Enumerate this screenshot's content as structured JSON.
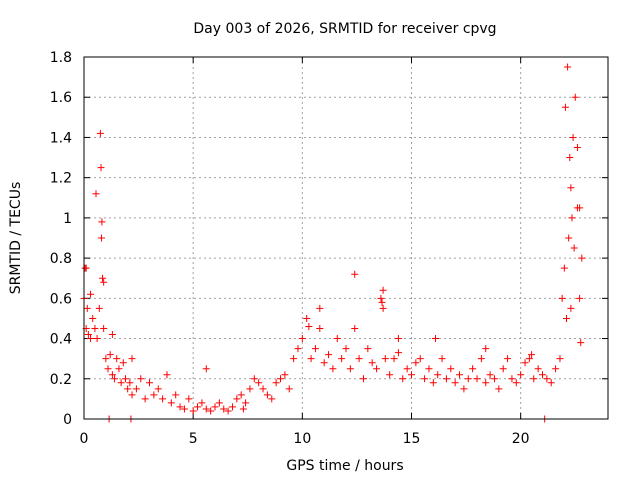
{
  "chart_data": {
    "type": "scatter",
    "title": "Day 003 of 2026, SRMTID for receiver cpvg",
    "xlabel": "GPS time / hours",
    "ylabel": "SRMTID / TECUs",
    "xlim": [
      0,
      24
    ],
    "ylim": [
      0,
      1.8
    ],
    "xticks": [
      0,
      5,
      10,
      15,
      20
    ],
    "yticks": [
      0,
      0.2,
      0.4,
      0.6,
      0.8,
      1,
      1.2,
      1.4,
      1.6,
      1.8
    ],
    "grid": true,
    "marker": "plus",
    "color": "#ff0000",
    "series": [
      {
        "name": "SRMTID",
        "x": [
          0.0,
          0.05,
          0.1,
          0.15,
          0.2,
          0.3,
          0.4,
          0.5,
          0.6,
          0.7,
          0.75,
          0.8,
          0.85,
          0.9,
          1.0,
          1.1,
          1.2,
          1.3,
          1.4,
          1.5,
          1.6,
          1.7,
          1.8,
          1.9,
          2.0,
          2.1,
          2.2,
          2.4,
          2.6,
          2.8,
          3.0,
          3.2,
          3.4,
          3.6,
          3.8,
          4.0,
          4.2,
          4.4,
          4.6,
          4.8,
          5.0,
          5.2,
          5.4,
          5.6,
          5.8,
          6.0,
          6.2,
          6.4,
          6.6,
          6.8,
          7.0,
          7.2,
          7.4,
          7.6,
          7.8,
          8.0,
          8.2,
          8.4,
          8.6,
          8.8,
          9.0,
          9.2,
          9.4,
          9.6,
          9.8,
          10.0,
          10.2,
          10.4,
          10.6,
          10.8,
          11.0,
          11.2,
          11.4,
          11.6,
          11.8,
          12.0,
          12.2,
          12.4,
          12.6,
          12.8,
          13.0,
          13.2,
          13.4,
          13.6,
          13.7,
          13.8,
          14.0,
          14.2,
          14.4,
          14.6,
          14.8,
          15.0,
          15.2,
          15.4,
          15.6,
          15.8,
          16.0,
          16.2,
          16.4,
          16.6,
          16.8,
          17.0,
          17.2,
          17.4,
          17.6,
          17.8,
          18.0,
          18.2,
          18.4,
          18.6,
          18.8,
          19.0,
          19.2,
          19.4,
          19.6,
          19.8,
          20.0,
          20.2,
          20.4,
          20.6,
          20.8,
          21.0,
          21.2,
          21.4,
          21.6,
          21.8,
          21.9,
          22.0,
          22.1,
          22.2,
          22.3,
          22.4,
          22.5,
          22.6,
          22.7,
          22.8,
          0.1,
          0.3,
          0.55,
          0.78,
          0.82,
          0.9,
          1.3,
          2.2,
          5.6,
          7.3,
          10.3,
          10.8,
          12.4,
          13.7,
          13.65,
          14.4,
          16.1,
          18.4,
          20.5,
          22.05,
          22.15,
          22.25,
          22.3,
          22.35,
          22.45,
          22.6,
          22.7,
          22.75,
          21.1,
          1.15,
          2.15
        ],
        "y": [
          0.6,
          0.75,
          0.45,
          0.55,
          0.42,
          0.4,
          0.5,
          0.45,
          0.4,
          0.55,
          1.42,
          0.9,
          0.7,
          0.45,
          0.3,
          0.25,
          0.32,
          0.22,
          0.2,
          0.3,
          0.25,
          0.18,
          0.28,
          0.2,
          0.15,
          0.18,
          0.12,
          0.15,
          0.2,
          0.1,
          0.18,
          0.12,
          0.15,
          0.1,
          0.22,
          0.08,
          0.12,
          0.06,
          0.05,
          0.1,
          0.04,
          0.06,
          0.08,
          0.05,
          0.04,
          0.06,
          0.08,
          0.05,
          0.04,
          0.06,
          0.1,
          0.12,
          0.08,
          0.15,
          0.2,
          0.18,
          0.15,
          0.12,
          0.1,
          0.18,
          0.2,
          0.22,
          0.15,
          0.3,
          0.35,
          0.4,
          0.5,
          0.3,
          0.35,
          0.45,
          0.28,
          0.32,
          0.25,
          0.4,
          0.3,
          0.35,
          0.25,
          0.45,
          0.3,
          0.2,
          0.35,
          0.28,
          0.25,
          0.6,
          0.55,
          0.3,
          0.22,
          0.3,
          0.4,
          0.2,
          0.25,
          0.22,
          0.28,
          0.3,
          0.2,
          0.25,
          0.18,
          0.22,
          0.3,
          0.2,
          0.25,
          0.18,
          0.22,
          0.15,
          0.2,
          0.25,
          0.2,
          0.3,
          0.18,
          0.22,
          0.2,
          0.15,
          0.25,
          0.3,
          0.2,
          0.18,
          0.22,
          0.28,
          0.3,
          0.2,
          0.25,
          0.22,
          0.2,
          0.18,
          0.25,
          0.3,
          0.6,
          0.75,
          0.5,
          0.9,
          1.15,
          1.4,
          1.6,
          1.35,
          1.05,
          0.8,
          0.75,
          0.62,
          1.12,
          1.25,
          0.98,
          0.68,
          0.42,
          0.3,
          0.25,
          0.05,
          0.46,
          0.55,
          0.72,
          0.64,
          0.58,
          0.33,
          0.4,
          0.35,
          0.32,
          1.55,
          1.75,
          1.3,
          0.55,
          1.0,
          0.85,
          1.05,
          0.6,
          0.38,
          0.0,
          0.0,
          0.0
        ]
      }
    ]
  }
}
